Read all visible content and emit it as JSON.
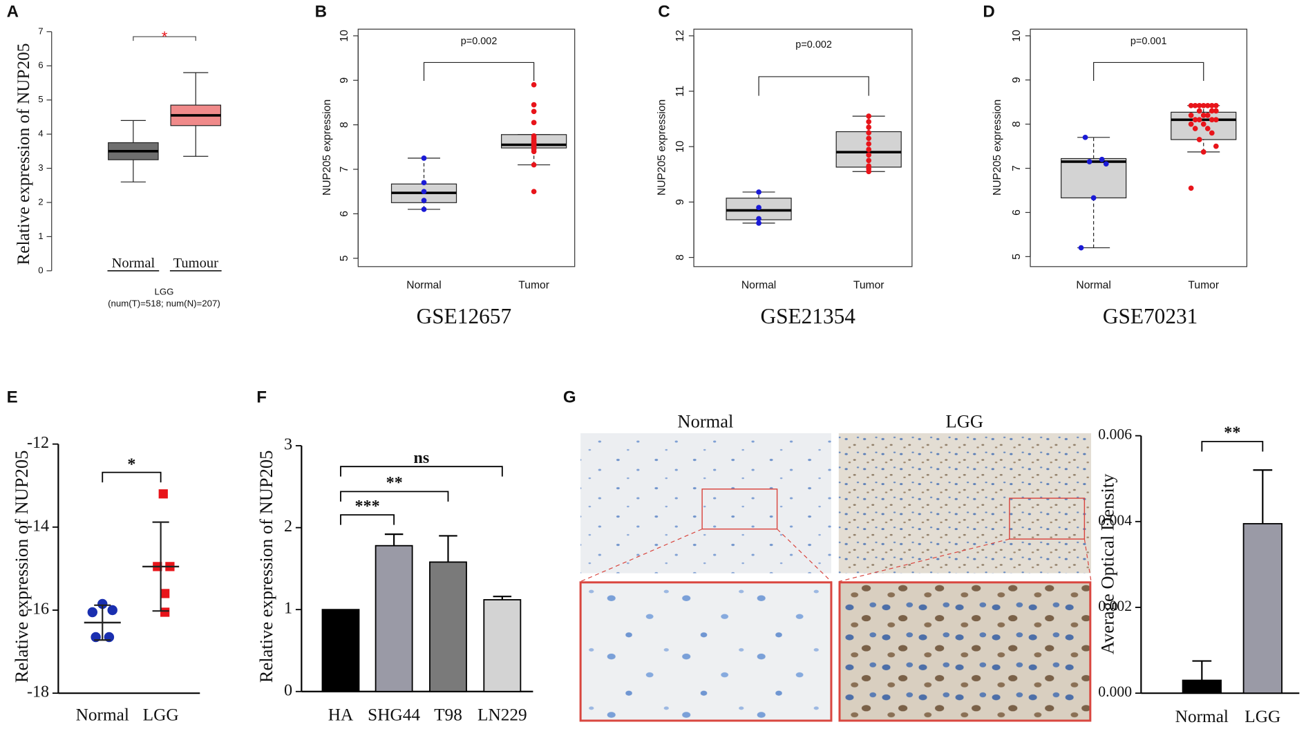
{
  "chart_data": [
    {
      "panel": "A",
      "type": "box",
      "ylabel": "Relative expression of NUP205",
      "xlabel": "LGG",
      "subtitle": "(num(T)=518; num(N)=207)",
      "annotation": "*",
      "categories": [
        "Normal",
        "Tumour"
      ],
      "ylim": [
        0,
        7
      ],
      "yticks": [
        0,
        1,
        2,
        3,
        4,
        5,
        6,
        7
      ],
      "box_colors": [
        "#6f6f6f",
        "#f08a8a"
      ],
      "boxes": [
        {
          "min": 2.6,
          "q1": 3.25,
          "median": 3.5,
          "q3": 3.75,
          "max": 4.4,
          "points": []
        },
        {
          "min": 3.35,
          "q1": 4.25,
          "median": 4.55,
          "q3": 4.85,
          "max": 5.8,
          "points": []
        }
      ]
    },
    {
      "panel": "B",
      "type": "box",
      "title": "GSE12657",
      "ylabel": "NUP205 expression",
      "annotation": "p=0.002",
      "categories": [
        "Normal",
        "Tumor"
      ],
      "ylim": [
        5,
        10
      ],
      "yticks": [
        5,
        6,
        7,
        8,
        9,
        10
      ],
      "box_colors": [
        "#d3d3d3",
        "#d3d3d3"
      ],
      "point_colors": [
        "#1a1ad6",
        "#e8141a"
      ],
      "boxes": [
        {
          "min": 6.1,
          "q1": 6.25,
          "median": 6.47,
          "q3": 6.67,
          "max": 7.25,
          "points": [
            6.1,
            6.3,
            6.5,
            6.7,
            7.25
          ]
        },
        {
          "min": 7.1,
          "q1": 7.48,
          "median": 7.55,
          "q3": 7.78,
          "max": 7.78,
          "points": [
            6.5,
            7.1,
            7.4,
            7.45,
            7.5,
            7.55,
            7.55,
            7.6,
            7.6,
            7.65,
            7.7,
            7.75,
            8.05,
            8.3,
            8.45,
            8.9
          ]
        }
      ]
    },
    {
      "panel": "C",
      "type": "box",
      "title": "GSE21354",
      "ylabel": "NUP205 expression",
      "annotation": "p=0.002",
      "categories": [
        "Normal",
        "Tumor"
      ],
      "ylim": [
        8,
        12
      ],
      "yticks": [
        8,
        9,
        10,
        11,
        12
      ],
      "box_colors": [
        "#d3d3d3",
        "#d3d3d3"
      ],
      "point_colors": [
        "#1a1ad6",
        "#e8141a"
      ],
      "boxes": [
        {
          "min": 8.62,
          "q1": 8.68,
          "median": 8.85,
          "q3": 9.07,
          "max": 9.18,
          "points": [
            8.62,
            8.7,
            8.9,
            9.18
          ]
        },
        {
          "min": 9.55,
          "q1": 9.63,
          "median": 9.9,
          "q3": 10.27,
          "max": 10.55,
          "points": [
            9.55,
            9.6,
            9.65,
            9.75,
            9.85,
            9.95,
            10.05,
            10.15,
            10.25,
            10.35,
            10.45,
            10.55
          ]
        }
      ]
    },
    {
      "panel": "D",
      "type": "box",
      "title": "GSE70231",
      "ylabel": "NUP205 expression",
      "annotation": "p=0.001",
      "categories": [
        "Normal",
        "Tumor"
      ],
      "ylim": [
        5,
        10
      ],
      "yticks": [
        5,
        6,
        7,
        8,
        9,
        10
      ],
      "box_colors": [
        "#d3d3d3",
        "#d3d3d3"
      ],
      "point_colors": [
        "#1a1ad6",
        "#e8141a"
      ],
      "boxes": [
        {
          "min": 5.2,
          "q1": 6.33,
          "median": 7.15,
          "q3": 7.22,
          "max": 7.7,
          "points": [
            5.2,
            6.33,
            7.1,
            7.15,
            7.2,
            7.7
          ]
        },
        {
          "min": 7.37,
          "q1": 7.65,
          "median": 8.1,
          "q3": 8.27,
          "max": 8.42,
          "points": [
            6.55,
            7.37,
            7.5,
            7.65,
            7.8,
            7.9,
            7.9,
            8.0,
            8.0,
            8.1,
            8.1,
            8.1,
            8.1,
            8.2,
            8.2,
            8.2,
            8.3,
            8.3,
            8.3,
            8.42,
            8.42,
            8.42,
            8.42,
            8.42,
            8.42,
            8.42
          ]
        }
      ]
    },
    {
      "panel": "E",
      "type": "dot",
      "ylabel": "Relative expression of NUP205",
      "annotation": "*",
      "categories": [
        "Normal",
        "LGG"
      ],
      "ylim": [
        -18,
        -12
      ],
      "yticks": [
        -18,
        -16,
        -14,
        -12
      ],
      "groups": [
        {
          "values": [
            -15.85,
            -16.05,
            -16.0,
            -16.65,
            -16.65
          ],
          "mean": -16.3,
          "sd": 0.42,
          "color": "#1a2fb0",
          "marker": "circle"
        },
        {
          "values": [
            -13.2,
            -14.95,
            -14.95,
            -15.6,
            -16.05
          ],
          "mean": -14.95,
          "sd": 1.07,
          "color": "#e8141a",
          "marker": "square"
        }
      ]
    },
    {
      "panel": "F",
      "type": "bar",
      "ylabel": "Relative expression of NUP205",
      "categories": [
        "HA",
        "SHG44",
        "T98",
        "LN229"
      ],
      "values": [
        1.0,
        1.78,
        1.58,
        1.12
      ],
      "errors": [
        null,
        0.14,
        0.32,
        0.04
      ],
      "colors": [
        "#000000",
        "#9a9aa6",
        "#7a7a7a",
        "#d3d3d3"
      ],
      "ylim": [
        0,
        3
      ],
      "yticks": [
        0,
        1,
        2,
        3
      ],
      "comparisons": [
        {
          "label": "***",
          "groups": [
            "HA",
            "SHG44"
          ]
        },
        {
          "label": "**",
          "groups": [
            "HA",
            "T98"
          ]
        },
        {
          "label": "ns",
          "groups": [
            "HA",
            "LN229"
          ]
        }
      ]
    },
    {
      "panel": "G",
      "type": "images",
      "labels": [
        "Normal",
        "LGG"
      ]
    },
    {
      "type": "bar",
      "ylabel": "Average Optical Density",
      "categories": [
        "Normal",
        "LGG"
      ],
      "values": [
        0.0003,
        0.00395
      ],
      "errors": [
        0.00045,
        0.00125
      ],
      "colors": [
        "#000000",
        "#9a9aa6"
      ],
      "ylim": [
        0,
        0.006
      ],
      "yticks": [
        {
          "value": 0,
          "label": "0.000"
        },
        {
          "value": 0.002,
          "label": "0.002"
        },
        {
          "value": 0.004,
          "label": "0.004"
        },
        {
          "value": 0.006,
          "label": "0.006"
        }
      ],
      "comparisons": [
        {
          "label": "**",
          "groups": [
            "Normal",
            "LGG"
          ]
        }
      ]
    }
  ]
}
